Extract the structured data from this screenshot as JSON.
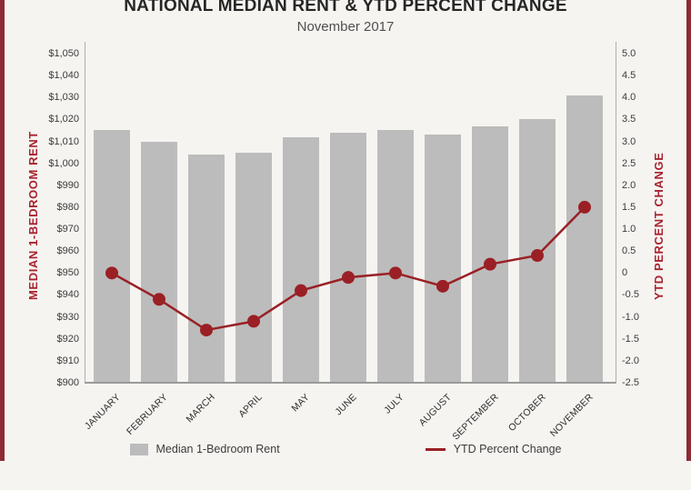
{
  "page": {
    "title": "NATIONAL MEDIAN RENT & YTD PERCENT CHANGE",
    "subtitle": "November 2017"
  },
  "chart_data": {
    "type": "bar",
    "subtype": "bar+line dual axis",
    "title": "NATIONAL MEDIAN RENT & YTD PERCENT CHANGE",
    "subtitle": "November 2017",
    "categories": [
      "JANUARY",
      "FEBRUARY",
      "MARCH",
      "APRIL",
      "MAY",
      "JUNE",
      "JULY",
      "AUGUST",
      "SEPTEMBER",
      "OCTOBER",
      "NOVEMBER"
    ],
    "series": [
      {
        "name": "Median 1-Bedroom Rent",
        "type": "bar",
        "axis": "left",
        "color": "#bcbcbc",
        "values": [
          1015,
          1010,
          1004,
          1005,
          1012,
          1014,
          1015,
          1013,
          1017,
          1020,
          1031
        ]
      },
      {
        "name": "YTD Percent Change",
        "type": "line",
        "axis": "right",
        "color": "#9a2025",
        "values": [
          0.0,
          -0.6,
          -1.3,
          -1.1,
          -0.4,
          -0.1,
          0.0,
          -0.3,
          0.2,
          0.4,
          1.5
        ]
      }
    ],
    "left_axis": {
      "label": "MEDIAN 1-BEDROOM RENT",
      "min": 900,
      "max": 1050,
      "step": 10,
      "format": "currency"
    },
    "right_axis": {
      "label": "YTD PERCENT CHANGE",
      "min": -2.5,
      "max": 5.0,
      "step": 0.5,
      "format": "decimal1"
    },
    "grid": false,
    "legend_position": "bottom"
  },
  "legend": {
    "bar_label": "Median 1-Bedroom Rent",
    "line_label": "YTD Percent Change"
  },
  "colors": {
    "background": "#f5f4f1",
    "bar": "#bcbcbc",
    "line": "#9a2025",
    "axis_title": "#a8232e",
    "side_border": "#8c2b36"
  }
}
